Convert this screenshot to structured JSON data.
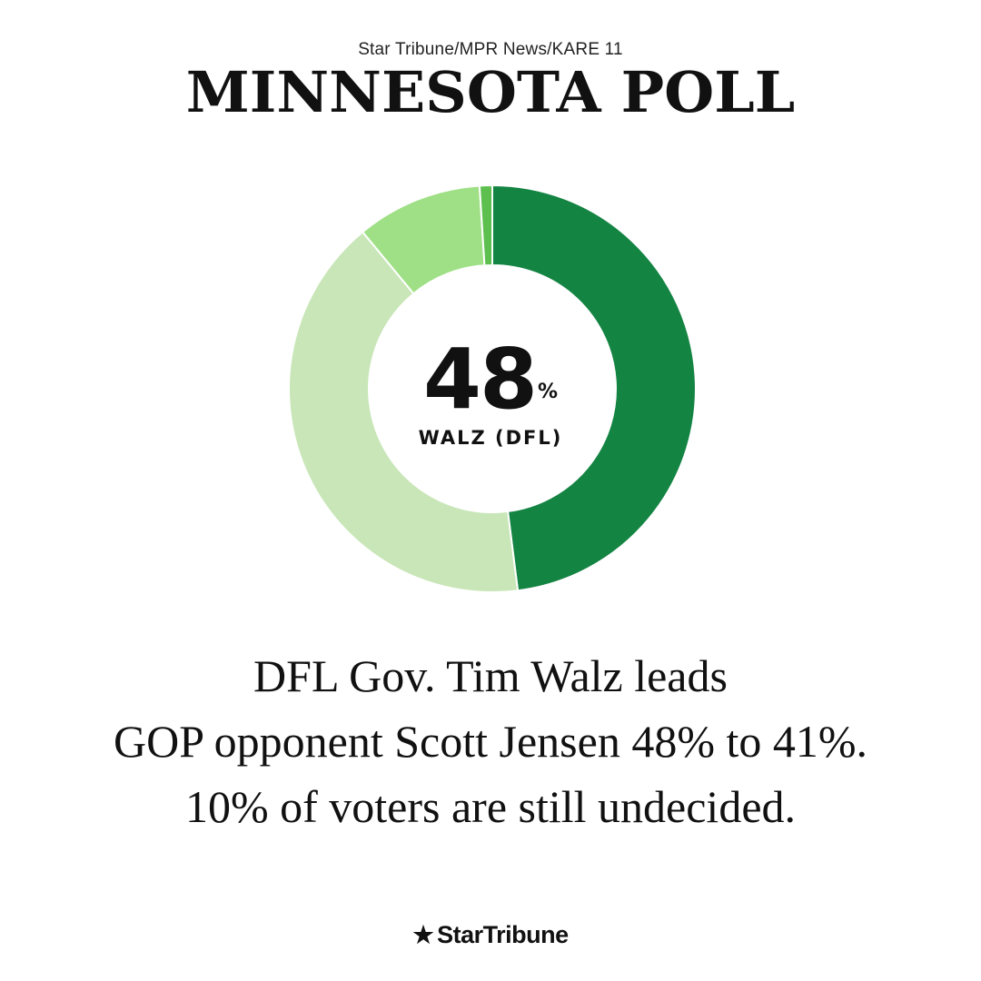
{
  "header": {
    "kicker": "Star Tribune/MPR News/KARE 11",
    "title": "MINNESOTA POLL"
  },
  "chart_data": {
    "type": "pie",
    "style": "donut",
    "slices": [
      {
        "value": 48,
        "color": "#148443"
      },
      {
        "value": 41,
        "color": "#c8e6b7"
      },
      {
        "value": 10,
        "color": "#9fe086"
      },
      {
        "value": 1,
        "color": "#5cbf4e"
      }
    ],
    "center_value": "48",
    "center_unit": "%",
    "center_label": "WALZ (DFL)"
  },
  "headline": {
    "line1": "DFL Gov. Tim Walz leads",
    "line2": "GOP opponent Scott Jensen 48% to 41%.",
    "line3": "10% of voters are still undecided."
  },
  "footer": {
    "star_icon": "★",
    "brand": "StarTribune"
  }
}
